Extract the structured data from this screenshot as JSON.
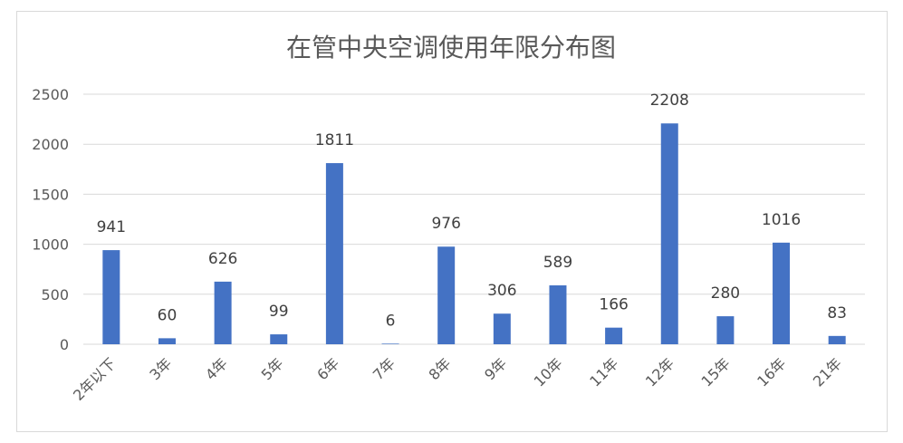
{
  "chart_data": {
    "type": "bar",
    "title": "在管中央空调使用年限分布图",
    "categories": [
      "2年以下",
      "3年",
      "4年",
      "5年",
      "6年",
      "7年",
      "8年",
      "9年",
      "10年",
      "11年",
      "12年",
      "15年",
      "16年",
      "21年"
    ],
    "values": [
      941,
      60,
      626,
      99,
      1811,
      6,
      976,
      306,
      589,
      166,
      2208,
      280,
      1016,
      83
    ],
    "ylim": [
      0,
      2500
    ],
    "yticks": [
      0,
      500,
      1000,
      1500,
      2000,
      2500
    ],
    "grid": true,
    "legend": "none",
    "data_labels": true,
    "xlabel": "",
    "ylabel": "",
    "colors": {
      "bar": "#4472c4",
      "grid": "#d9d9d9",
      "text": "#595959"
    }
  }
}
